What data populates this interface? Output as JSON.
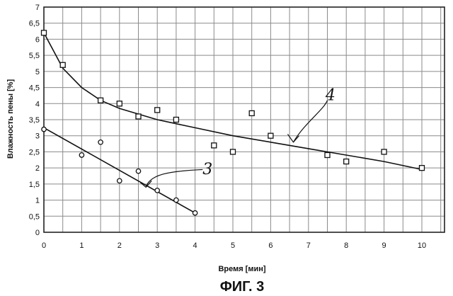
{
  "figure_caption": "ФИГ. 3",
  "chart_data": {
    "type": "scatter",
    "title": "",
    "xlabel": "Время [мин]",
    "ylabel": "Влажность пены [%]",
    "xlim": [
      0,
      10.5
    ],
    "ylim": [
      0,
      7
    ],
    "x_ticks": [
      "0",
      "1",
      "2",
      "3",
      "4",
      "5",
      "6",
      "7",
      "8",
      "9",
      "10"
    ],
    "y_ticks": [
      "0",
      "0,5",
      "1",
      "1,5",
      "2",
      "2,5",
      "3",
      "3,5",
      "4",
      "4,5",
      "5",
      "5,5",
      "6",
      "6,5",
      "7"
    ],
    "grid": true,
    "legend": "none",
    "series": [
      {
        "label": "4",
        "marker": "square",
        "points": [
          {
            "x": 0,
            "y": 6.2
          },
          {
            "x": 0.5,
            "y": 5.2
          },
          {
            "x": 1.5,
            "y": 4.1
          },
          {
            "x": 2,
            "y": 4.0
          },
          {
            "x": 2.5,
            "y": 3.6
          },
          {
            "x": 3,
            "y": 3.8
          },
          {
            "x": 3.5,
            "y": 3.5
          },
          {
            "x": 4.5,
            "y": 2.7
          },
          {
            "x": 5,
            "y": 2.5
          },
          {
            "x": 5.5,
            "y": 3.7
          },
          {
            "x": 6,
            "y": 3.0
          },
          {
            "x": 7.5,
            "y": 2.4
          },
          {
            "x": 8,
            "y": 2.2
          },
          {
            "x": 9,
            "y": 2.5
          },
          {
            "x": 10,
            "y": 2.0
          }
        ],
        "trend": [
          {
            "x": 0,
            "y": 6.2
          },
          {
            "x": 0.5,
            "y": 5.1
          },
          {
            "x": 1,
            "y": 4.5
          },
          {
            "x": 1.5,
            "y": 4.1
          },
          {
            "x": 2,
            "y": 3.85
          },
          {
            "x": 3,
            "y": 3.5
          },
          {
            "x": 4,
            "y": 3.25
          },
          {
            "x": 5,
            "y": 3.0
          },
          {
            "x": 6,
            "y": 2.8
          },
          {
            "x": 7,
            "y": 2.6
          },
          {
            "x": 8,
            "y": 2.4
          },
          {
            "x": 9,
            "y": 2.2
          },
          {
            "x": 10,
            "y": 1.95
          }
        ]
      },
      {
        "label": "3",
        "marker": "circle",
        "points": [
          {
            "x": 0,
            "y": 3.2
          },
          {
            "x": 1,
            "y": 2.4
          },
          {
            "x": 1.5,
            "y": 2.8
          },
          {
            "x": 2,
            "y": 1.6
          },
          {
            "x": 2.5,
            "y": 1.9
          },
          {
            "x": 3,
            "y": 1.3
          },
          {
            "x": 3.5,
            "y": 1.0
          },
          {
            "x": 4,
            "y": 0.6
          }
        ],
        "trend": [
          {
            "x": 0,
            "y": 3.25
          },
          {
            "x": 4,
            "y": 0.6
          }
        ]
      }
    ]
  }
}
